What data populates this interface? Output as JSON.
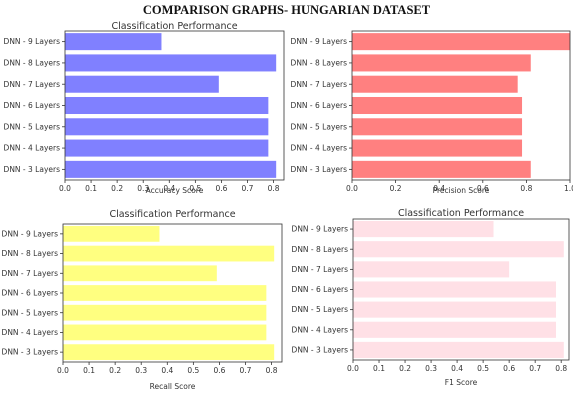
{
  "page_title": "COMPARISON GRAPHS- HUNGARIAN DATASET",
  "chart_data": [
    {
      "type": "bar",
      "orientation": "horizontal",
      "title": "Classification Performance",
      "xlabel": "Accuracy Score",
      "ylabel": "",
      "categories": [
        "DNN - 3 Layers",
        "DNN - 4 Layers",
        "DNN - 5 Layers",
        "DNN - 6 Layers",
        "DNN - 7 Layers",
        "DNN - 8 Layers",
        "DNN - 9 Layers"
      ],
      "values": [
        0.81,
        0.78,
        0.78,
        0.78,
        0.59,
        0.81,
        0.37
      ],
      "xlim": [
        0,
        0.84
      ],
      "xticks": [
        0.0,
        0.1,
        0.2,
        0.3,
        0.4,
        0.5,
        0.6,
        0.7,
        0.8
      ],
      "xtick_labels": [
        "0.0",
        "0.1",
        "0.2",
        "0.3",
        "0.4",
        "0.5",
        "0.6",
        "0.7",
        "0.8"
      ],
      "color": "#8080ff",
      "grid": false
    },
    {
      "type": "bar",
      "orientation": "horizontal",
      "title": "",
      "xlabel": "Precision Score",
      "ylabel": "",
      "categories": [
        "DNN - 3 Layers",
        "DNN - 4 Layers",
        "DNN - 5 Layers",
        "DNN - 6 Layers",
        "DNN - 7 Layers",
        "DNN - 8 Layers",
        "DNN - 9 Layers"
      ],
      "values": [
        0.82,
        0.78,
        0.78,
        0.78,
        0.76,
        0.82,
        1.0
      ],
      "xlim": [
        0,
        1.0
      ],
      "xticks": [
        0.0,
        0.2,
        0.4,
        0.6,
        0.8,
        1.0
      ],
      "xtick_labels": [
        "0.0",
        "0.2",
        "0.4",
        "0.6",
        "0.8",
        "1.0"
      ],
      "color": "#ff8080",
      "grid": false
    },
    {
      "type": "bar",
      "orientation": "horizontal",
      "title": "Classification Performance",
      "xlabel": "Recall Score",
      "ylabel": "",
      "categories": [
        "DNN - 3 Layers",
        "DNN - 4 Layers",
        "DNN - 5 Layers",
        "DNN - 6 Layers",
        "DNN - 7 Layers",
        "DNN - 8 Layers",
        "DNN - 9 Layers"
      ],
      "values": [
        0.81,
        0.78,
        0.78,
        0.78,
        0.59,
        0.81,
        0.37
      ],
      "xlim": [
        0,
        0.84
      ],
      "xticks": [
        0.0,
        0.1,
        0.2,
        0.3,
        0.4,
        0.5,
        0.6,
        0.7,
        0.8
      ],
      "xtick_labels": [
        "0.0",
        "0.1",
        "0.2",
        "0.3",
        "0.4",
        "0.5",
        "0.6",
        "0.7",
        "0.8"
      ],
      "color": "#ffff80",
      "grid": false
    },
    {
      "type": "bar",
      "orientation": "horizontal",
      "title": "Classification Performance",
      "xlabel": "F1 Score",
      "ylabel": "",
      "categories": [
        "DNN - 3 Layers",
        "DNN - 4 Layers",
        "DNN - 5 Layers",
        "DNN - 6 Layers",
        "DNN - 7 Layers",
        "DNN - 8 Layers",
        "DNN - 9 Layers"
      ],
      "values": [
        0.81,
        0.78,
        0.78,
        0.78,
        0.6,
        0.81,
        0.54
      ],
      "xlim": [
        0,
        0.83
      ],
      "xticks": [
        0.0,
        0.1,
        0.2,
        0.3,
        0.4,
        0.5,
        0.6,
        0.7,
        0.8
      ],
      "xtick_labels": [
        "0.0",
        "0.1",
        "0.2",
        "0.3",
        "0.4",
        "0.5",
        "0.6",
        "0.7",
        "0.8"
      ],
      "color": "#ffe0e6",
      "grid": false
    }
  ]
}
